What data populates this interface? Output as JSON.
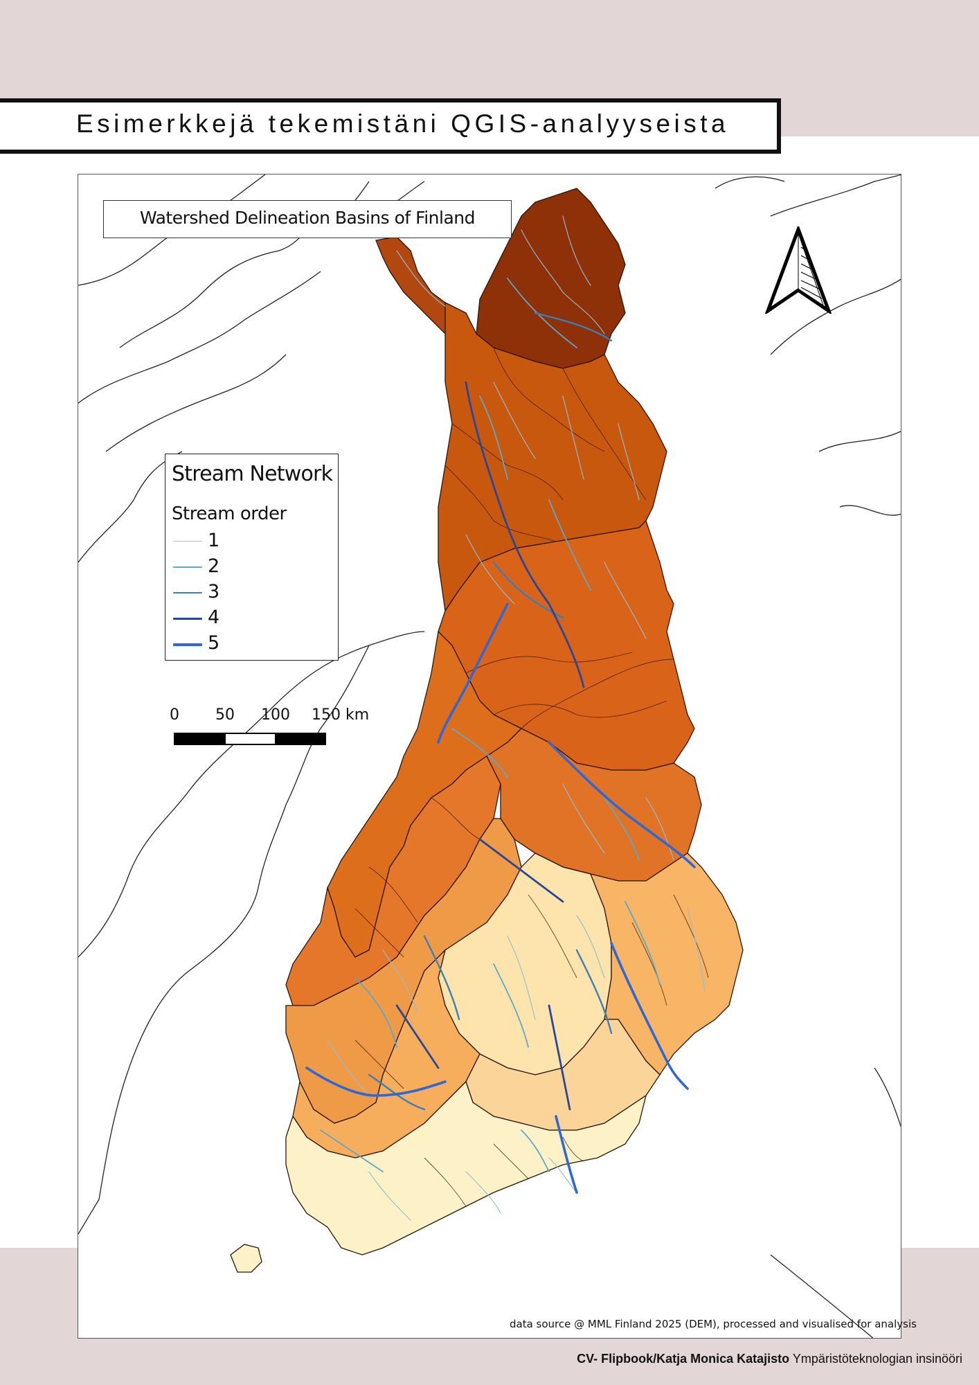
{
  "page": {
    "header_title": "Esimerkkejä tekemistäni QGIS-analyysei​sta",
    "footer_bold": "CV- Flipbook/Katja Monica Katajisto",
    "footer_regular": "Ympäristöteknologian insinööri",
    "band_color": "#e3d6d6"
  },
  "map": {
    "title": "Watershed Delineation Basins of Finland",
    "source_note": "data source @ MML Finland 2025 (DEM), processed and visualised for analysis",
    "north_arrow_icon": "north-arrow-icon",
    "legend": {
      "title": "Stream Network",
      "subtitle": "Stream order",
      "items": [
        {
          "label": "1",
          "color": "#9fc4d2"
        },
        {
          "label": "2",
          "color": "#5fa7c9"
        },
        {
          "label": "3",
          "color": "#3d7eb5"
        },
        {
          "label": "4",
          "color": "#27479a"
        },
        {
          "label": "5",
          "color": "#2e67d6"
        }
      ]
    },
    "scale": {
      "labels": [
        "0",
        "50",
        "100",
        "150 km"
      ]
    },
    "basin_colors": [
      "#8e3008",
      "#b14810",
      "#c9580f",
      "#dd6f1c",
      "#eb8a35",
      "#f5ac5a",
      "#fbc887",
      "#fde4ac",
      "#fdf1c8"
    ]
  }
}
